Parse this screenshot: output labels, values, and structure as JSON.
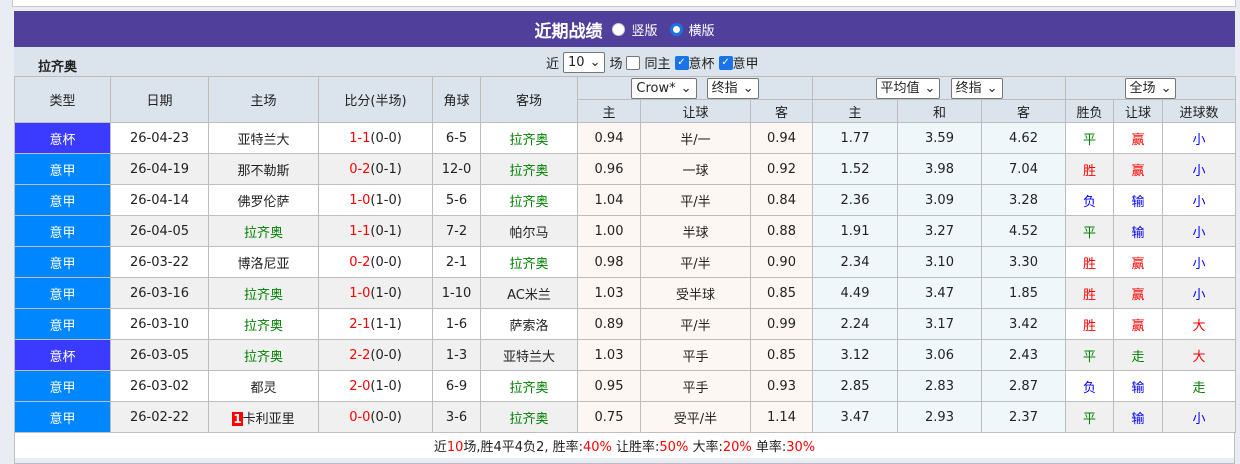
{
  "title": "近期战绩",
  "layout_options": [
    "竖版",
    "横版"
  ],
  "layout_selected": "横版",
  "team": "拉齐奥",
  "filter": {
    "prefix": "近",
    "count": "10",
    "suffix": "场",
    "same_home": "同主",
    "same_home_checked": false,
    "leagues": [
      {
        "label": "意杯",
        "checked": true
      },
      {
        "label": "意甲",
        "checked": true
      }
    ]
  },
  "selects": {
    "company": "Crow*",
    "handicap_type": "终指",
    "euro_type": "平均值",
    "euro_mode": "终指",
    "period": "全场"
  },
  "columns": {
    "type": "类型",
    "date": "日期",
    "home": "主场",
    "score": "比分(半场)",
    "corner": "角球",
    "away": "客场",
    "ah_home": "主",
    "ah_line": "让球",
    "ah_away": "客",
    "eu_home": "主",
    "eu_draw": "和",
    "eu_away": "客",
    "result": "胜负",
    "ah_result": "让球",
    "goals": "进球数"
  },
  "colors": {
    "header": "#51409b",
    "league_cup": "#3b3bff",
    "league": "#0087ff",
    "team_highlight": "#008000",
    "score": "#ff0000"
  },
  "rows": [
    {
      "type": "意杯",
      "date": "26-04-23",
      "home": "亚特兰大",
      "score": "1-1",
      "half": "(0-0)",
      "corner": "6-5",
      "away": "拉齐奥",
      "ah_h": "0.94",
      "ah": "半/一",
      "ah_a": "0.94",
      "eu_h": "1.77",
      "eu_d": "3.59",
      "eu_a": "4.62",
      "res": "平",
      "ahr": "赢",
      "goals": "小"
    },
    {
      "type": "意甲",
      "date": "26-04-19",
      "home": "那不勒斯",
      "score": "0-2",
      "half": "(0-1)",
      "corner": "12-0",
      "away": "拉齐奥",
      "ah_h": "0.96",
      "ah": "一球",
      "ah_a": "0.92",
      "eu_h": "1.52",
      "eu_d": "3.98",
      "eu_a": "7.04",
      "res": "胜",
      "ahr": "赢",
      "goals": "小"
    },
    {
      "type": "意甲",
      "date": "26-04-14",
      "home": "佛罗伦萨",
      "score": "1-0",
      "half": "(1-0)",
      "corner": "5-6",
      "away": "拉齐奥",
      "ah_h": "1.04",
      "ah": "平/半",
      "ah_a": "0.84",
      "eu_h": "2.36",
      "eu_d": "3.09",
      "eu_a": "3.28",
      "res": "负",
      "ahr": "输",
      "goals": "小"
    },
    {
      "type": "意甲",
      "date": "26-04-05",
      "home": "拉齐奥",
      "score": "1-1",
      "half": "(0-1)",
      "corner": "7-2",
      "away": "帕尔马",
      "ah_h": "1.00",
      "ah": "半球",
      "ah_a": "0.88",
      "eu_h": "1.91",
      "eu_d": "3.27",
      "eu_a": "4.52",
      "res": "平",
      "ahr": "输",
      "goals": "小"
    },
    {
      "type": "意甲",
      "date": "26-03-22",
      "home": "博洛尼亚",
      "score": "0-2",
      "half": "(0-0)",
      "corner": "2-1",
      "away": "拉齐奥",
      "ah_h": "0.98",
      "ah": "平/半",
      "ah_a": "0.90",
      "eu_h": "2.34",
      "eu_d": "3.10",
      "eu_a": "3.30",
      "res": "胜",
      "ahr": "赢",
      "goals": "小"
    },
    {
      "type": "意甲",
      "date": "26-03-16",
      "home": "拉齐奥",
      "score": "1-0",
      "half": "(1-0)",
      "corner": "1-10",
      "away": "AC米兰",
      "ah_h": "1.03",
      "ah": "受半球",
      "ah_a": "0.85",
      "eu_h": "4.49",
      "eu_d": "3.47",
      "eu_a": "1.85",
      "res": "胜",
      "ahr": "赢",
      "goals": "小"
    },
    {
      "type": "意甲",
      "date": "26-03-10",
      "home": "拉齐奥",
      "score": "2-1",
      "half": "(1-1)",
      "corner": "1-6",
      "away": "萨索洛",
      "ah_h": "0.89",
      "ah": "平/半",
      "ah_a": "0.99",
      "eu_h": "2.24",
      "eu_d": "3.17",
      "eu_a": "3.42",
      "res": "胜",
      "ahr": "赢",
      "goals": "大"
    },
    {
      "type": "意杯",
      "date": "26-03-05",
      "home": "拉齐奥",
      "score": "2-2",
      "half": "(0-0)",
      "corner": "1-3",
      "away": "亚特兰大",
      "ah_h": "1.03",
      "ah": "平手",
      "ah_a": "0.85",
      "eu_h": "3.12",
      "eu_d": "3.06",
      "eu_a": "2.43",
      "res": "平",
      "ahr": "走",
      "goals": "大"
    },
    {
      "type": "意甲",
      "date": "26-03-02",
      "home": "都灵",
      "score": "2-0",
      "half": "(1-0)",
      "corner": "6-9",
      "away": "拉齐奥",
      "ah_h": "0.95",
      "ah": "平手",
      "ah_a": "0.93",
      "eu_h": "2.85",
      "eu_d": "2.83",
      "eu_a": "2.87",
      "res": "负",
      "ahr": "输",
      "goals": "走"
    },
    {
      "type": "意甲",
      "date": "26-02-22",
      "home": "卡利亚里",
      "home_rank": "1",
      "score": "0-0",
      "half": "(0-0)",
      "corner": "3-6",
      "away": "拉齐奥",
      "ah_h": "0.75",
      "ah": "受平/半",
      "ah_a": "1.14",
      "eu_h": "3.47",
      "eu_d": "2.93",
      "eu_a": "2.37",
      "res": "平",
      "ahr": "输",
      "goals": "小"
    }
  ],
  "summary": {
    "p1": "近",
    "n": "10",
    "p2": "场,胜4平4负2, 胜率:",
    "win": "40%",
    "p3": " 让胜率:",
    "ahwin": "50%",
    "p4": " 大率:",
    "over": "20%",
    "p5": " 单率:",
    "odd": "30%"
  }
}
